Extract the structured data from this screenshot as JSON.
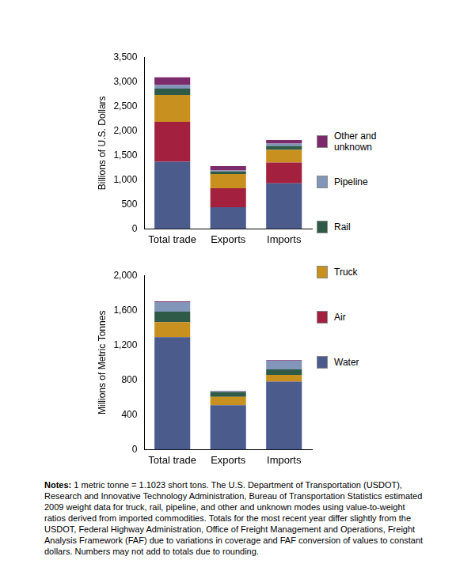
{
  "chart_data": [
    {
      "type": "bar",
      "stacked": true,
      "grid": false,
      "legend": "right",
      "y_label": "Billions of U.S. Dollars",
      "categories": [
        "Total trade",
        "Exports",
        "Imports"
      ],
      "ylim": [
        0,
        3500
      ],
      "yticks": [
        0,
        500,
        {
          "value": 1000,
          "label": "1,000"
        },
        {
          "value": 1500,
          "label": "1,500"
        },
        {
          "value": 2000,
          "label": "2,000"
        },
        {
          "value": 2500,
          "label": "2,500"
        },
        {
          "value": 3000,
          "label": "3,000"
        },
        {
          "value": 3500,
          "label": "3,500"
        }
      ],
      "series": [
        {
          "name": "Water",
          "color": "#4b5b8c",
          "values": [
            1370,
            440,
            930
          ]
        },
        {
          "name": "Air",
          "color": "#a3203f",
          "values": [
            810,
            390,
            420
          ]
        },
        {
          "name": "Truck",
          "color": "#c8911f",
          "values": [
            550,
            290,
            260
          ]
        },
        {
          "name": "Rail",
          "color": "#2f5a48",
          "values": [
            130,
            50,
            80
          ]
        },
        {
          "name": "Pipeline",
          "color": "#8196b8",
          "values": [
            70,
            20,
            50
          ]
        },
        {
          "name": "Other and unknown",
          "color": "#7b2a6b",
          "values": [
            160,
            90,
            70
          ]
        }
      ]
    },
    {
      "type": "bar",
      "stacked": true,
      "grid": false,
      "y_label": "Millions of Metric Tonnes",
      "categories": [
        "Total trade",
        "Exports",
        "Imports"
      ],
      "ylim": [
        0,
        2000
      ],
      "yticks": [
        0,
        400,
        800,
        {
          "value": 1200,
          "label": "1,200"
        },
        {
          "value": 1600,
          "label": "1,600"
        },
        {
          "value": 2000,
          "label": "2,000"
        }
      ],
      "series": [
        {
          "name": "Water",
          "color": "#4b5b8c",
          "values": [
            1290,
            510,
            780
          ]
        },
        {
          "name": "Air",
          "color": "#a3203f",
          "values": [
            3,
            1,
            2
          ]
        },
        {
          "name": "Truck",
          "color": "#c8911f",
          "values": [
            170,
            95,
            75
          ]
        },
        {
          "name": "Rail",
          "color": "#2f5a48",
          "values": [
            120,
            55,
            65
          ]
        },
        {
          "name": "Pipeline",
          "color": "#8196b8",
          "values": [
            110,
            10,
            100
          ]
        },
        {
          "name": "Other and unknown",
          "color": "#7b2a6b",
          "values": [
            10,
            5,
            5
          ]
        }
      ]
    }
  ],
  "notes": {
    "label": "Notes:",
    "text": " 1 metric tonne = 1.1023 short tons. The U.S. Department of Transportation (USDOT), Research and Innovative Technology Administration, Bureau of Transportation Statistics estimated 2009 weight data for truck, rail, pipeline, and other and unknown modes using value-to-weight ratios derived from imported commodities. Totals for the most recent year differ slightly from the USDOT, Federal Highway Administration, Office of Freight Management and Operations, Freight Analysis Framework (FAF) due to variations in coverage and FAF conversion of values to constant dollars. Numbers may not add to totals due to rounding."
  }
}
